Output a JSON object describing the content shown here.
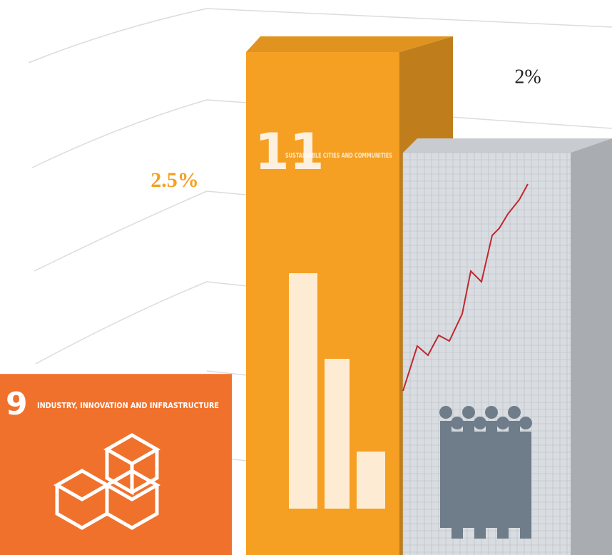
{
  "chart_data": {
    "type": "bar",
    "categories": [
      {
        "number": "9",
        "name": "INDUSTRY, INNOVATION AND INFRASTRUCTURE"
      },
      {
        "number": "11",
        "name": "SUSTAINABLE CITIES AND COMMUNITIES"
      },
      null
    ],
    "values": [
      0.9,
      2.5,
      2
    ],
    "value_labels": [
      null,
      "2.5%",
      "2%"
    ],
    "colors": [
      "#f0712c",
      "#f5a023",
      "#d9dde2"
    ],
    "label_colors": [
      null,
      "#f5a023",
      "#222222"
    ]
  }
}
